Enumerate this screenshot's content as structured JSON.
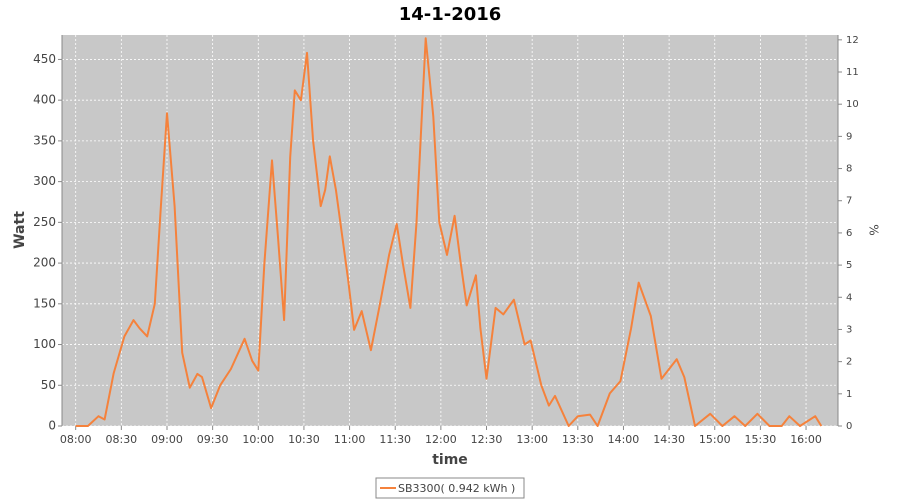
{
  "chart_data": {
    "type": "line",
    "title": "14-1-2016",
    "xlabel": "time",
    "ylabel": "Watt",
    "y2label": "%",
    "x": [
      "08:00",
      "08:08",
      "08:15",
      "08:19",
      "08:25",
      "08:32",
      "08:38",
      "08:42",
      "08:47",
      "08:52",
      "08:56",
      "09:00",
      "09:05",
      "09:10",
      "09:15",
      "09:20",
      "09:23",
      "09:29",
      "09:35",
      "09:42",
      "09:51",
      "09:56",
      "10:00",
      "10:04",
      "10:09",
      "10:13",
      "10:17",
      "10:21",
      "10:24",
      "10:28",
      "10:32",
      "10:36",
      "10:41",
      "10:44",
      "10:47",
      "10:51",
      "10:59",
      "11:03",
      "11:08",
      "11:14",
      "11:20",
      "11:26",
      "11:31",
      "11:35",
      "11:40",
      "11:44",
      "11:50",
      "11:55",
      "11:59",
      "12:04",
      "12:09",
      "12:13",
      "12:17",
      "12:23",
      "12:26",
      "12:30",
      "12:36",
      "12:41",
      "12:48",
      "12:55",
      "12:59",
      "13:06",
      "13:11",
      "13:15",
      "13:24",
      "13:30",
      "13:38",
      "13:43",
      "13:51",
      "13:58",
      "14:05",
      "14:10",
      "14:18",
      "14:25",
      "14:35",
      "14:40",
      "14:47",
      "14:57",
      "15:05",
      "15:13",
      "15:20",
      "15:28",
      "15:36",
      "15:44",
      "15:49",
      "15:56",
      "16:06",
      "16:10"
    ],
    "series": [
      {
        "name": "SB3300( 0.942 kWh )",
        "color": "#f5823c",
        "values": [
          0,
          0,
          12,
          8,
          65,
          110,
          130,
          120,
          110,
          150,
          270,
          384,
          270,
          90,
          47,
          64,
          60,
          22,
          50,
          70,
          107,
          80,
          68,
          200,
          326,
          230,
          130,
          330,
          412,
          400,
          458,
          350,
          270,
          290,
          331,
          290,
          180,
          118,
          141,
          93,
          150,
          210,
          248,
          200,
          145,
          250,
          476,
          380,
          250,
          210,
          258,
          200,
          148,
          185,
          120,
          58,
          145,
          137,
          155,
          100,
          105,
          50,
          25,
          37,
          0,
          12,
          14,
          0,
          40,
          55,
          120,
          176,
          135,
          58,
          82,
          60,
          0,
          15,
          0,
          12,
          0,
          15,
          0,
          0,
          12,
          0,
          12,
          0
        ]
      }
    ],
    "xlim": [
      "07:51",
      "16:21"
    ],
    "xticks": [
      "08:00",
      "08:30",
      "09:00",
      "09:30",
      "10:00",
      "10:30",
      "11:00",
      "11:30",
      "12:00",
      "12:30",
      "13:00",
      "13:30",
      "14:00",
      "14:30",
      "15:00",
      "15:30",
      "16:00"
    ],
    "ylim": [
      0,
      480
    ],
    "yticks": [
      0,
      50,
      100,
      150,
      200,
      250,
      300,
      350,
      400,
      450
    ],
    "y2lim": [
      0,
      12.15
    ],
    "y2ticks": [
      0,
      1,
      2,
      3,
      4,
      5,
      6,
      7,
      8,
      9,
      10,
      11,
      12
    ],
    "grid": true
  }
}
